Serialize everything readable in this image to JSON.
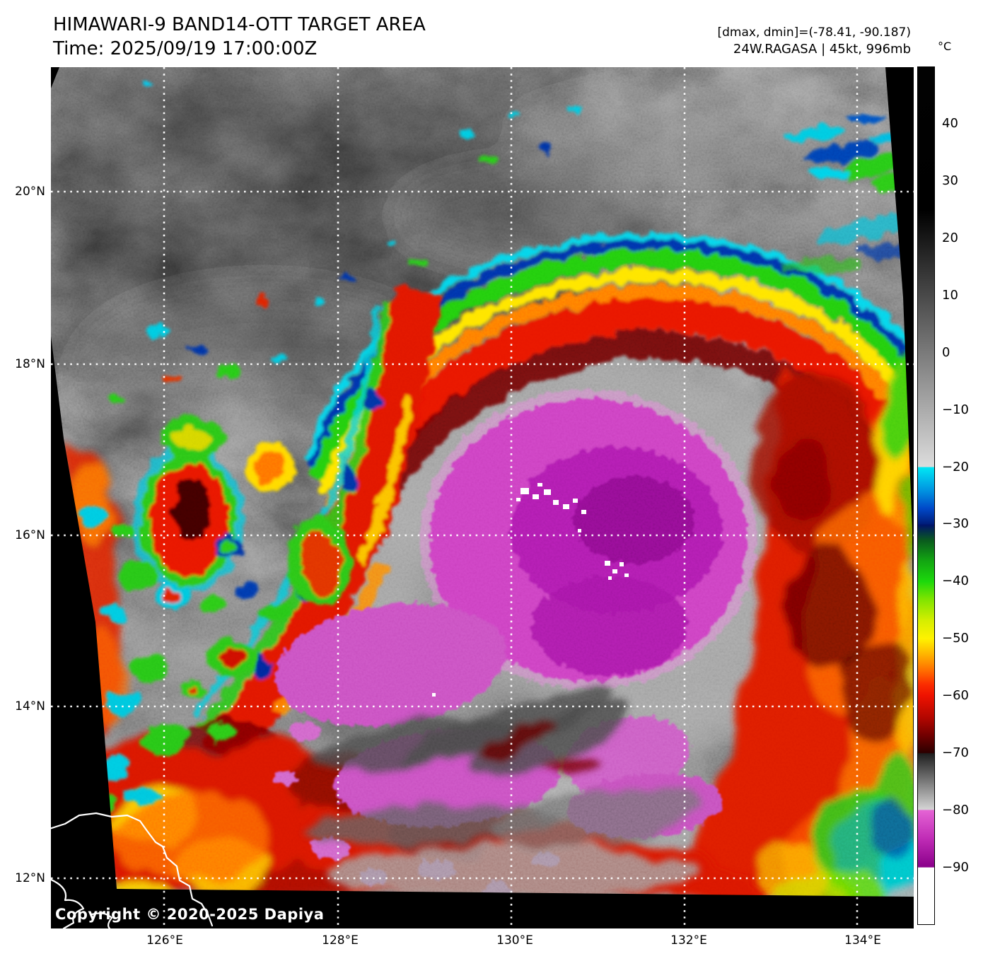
{
  "header": {
    "title": "HIMAWARI-9 BAND14-OTT TARGET AREA",
    "time_line": "Time: 2025/09/19 17:00:00Z",
    "stats_line": "[dmax, dmin]=(-78.41, -90.187)",
    "storm_line": "24W.RAGASA | 45kt, 996mb"
  },
  "colorbar": {
    "unit_label": "°C",
    "range": [
      50,
      -100
    ],
    "ticks": [
      {
        "label": "40",
        "value": 40
      },
      {
        "label": "30",
        "value": 30
      },
      {
        "label": "20",
        "value": 20
      },
      {
        "label": "10",
        "value": 10
      },
      {
        "label": "0",
        "value": 0
      },
      {
        "label": "−10",
        "value": -10
      },
      {
        "label": "−20",
        "value": -20
      },
      {
        "label": "−30",
        "value": -30
      },
      {
        "label": "−40",
        "value": -40
      },
      {
        "label": "−50",
        "value": -50
      },
      {
        "label": "−60",
        "value": -60
      },
      {
        "label": "−70",
        "value": -70
      },
      {
        "label": "−80",
        "value": -80
      },
      {
        "label": "−90",
        "value": -90
      }
    ],
    "segments": [
      {
        "from": 50,
        "to": -20,
        "colors": [
          "#000000",
          "#dcdcdc"
        ],
        "desc": "black to light gray"
      },
      {
        "from": -20,
        "to": -30,
        "colors": [
          "#00e6f4",
          "#001d7a"
        ],
        "desc": "cyan to blue"
      },
      {
        "from": -30,
        "to": -40,
        "colors": [
          "#001d7a",
          "#1cd80c"
        ],
        "desc": "blue to green"
      },
      {
        "from": -40,
        "to": -50,
        "colors": [
          "#1cd80c",
          "#fff200"
        ],
        "desc": "green to yellow"
      },
      {
        "from": -50,
        "to": -60,
        "colors": [
          "#fff200",
          "#ee1200"
        ],
        "desc": "yellow to red"
      },
      {
        "from": -60,
        "to": -70,
        "colors": [
          "#ee1200",
          "#2c0000"
        ],
        "desc": "red to dark red"
      },
      {
        "from": -70,
        "to": -80,
        "colors": [
          "#1f1f1f",
          "#d4d4d4"
        ],
        "desc": "dark gray to light gray"
      },
      {
        "from": -80,
        "to": -90,
        "colors": [
          "#e463d4",
          "#8a008a"
        ],
        "desc": "magenta to purple"
      },
      {
        "from": -90,
        "to": -100,
        "colors": [
          "#ffffff",
          "#ffffff"
        ],
        "desc": "white"
      }
    ]
  },
  "map": {
    "lat_labels": [
      "20°N",
      "18°N",
      "16°N",
      "14°N",
      "12°N"
    ],
    "lon_labels": [
      "126°E",
      "128°E",
      "130°E",
      "132°E",
      "134°E"
    ],
    "copyright": "Copyright © 2020-2025 Dapiya"
  }
}
